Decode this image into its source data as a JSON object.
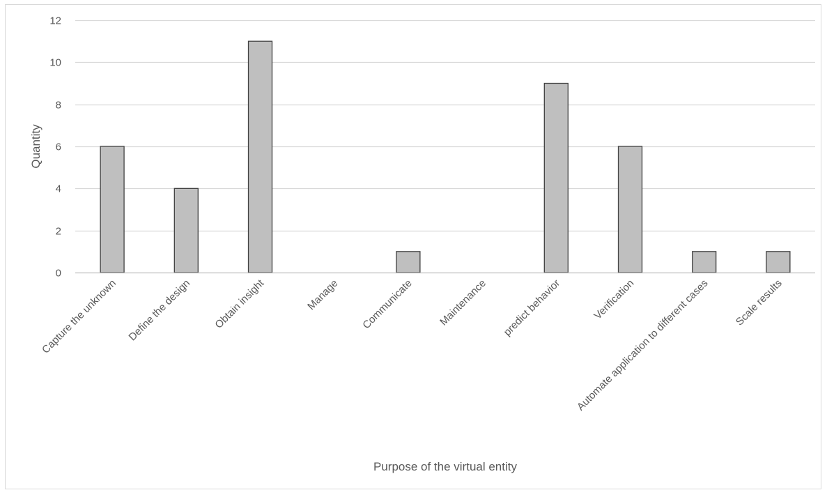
{
  "chart_data": {
    "type": "bar",
    "title": "",
    "xlabel": "Purpose of the virtual entity",
    "ylabel": "Quantity",
    "ylim": [
      0,
      12
    ],
    "yticks": [
      0,
      2,
      4,
      6,
      8,
      10,
      12
    ],
    "grid": true,
    "legend": "none",
    "categories": [
      "Capture the unknown",
      "Define the design",
      "Obtain insight",
      "Manage",
      "Communicate",
      "Maintenance",
      "predict behavior",
      "Verification",
      "Automate application to different cases",
      "Scale results"
    ],
    "values": [
      6,
      4,
      11,
      0,
      1,
      0,
      9,
      6,
      1,
      1
    ],
    "colors": {
      "bar_fill": "#bfbfbf",
      "bar_stroke": "#404040",
      "grid": "#d9d9d9",
      "text": "#595959",
      "frame": "#d9d9d9"
    }
  }
}
